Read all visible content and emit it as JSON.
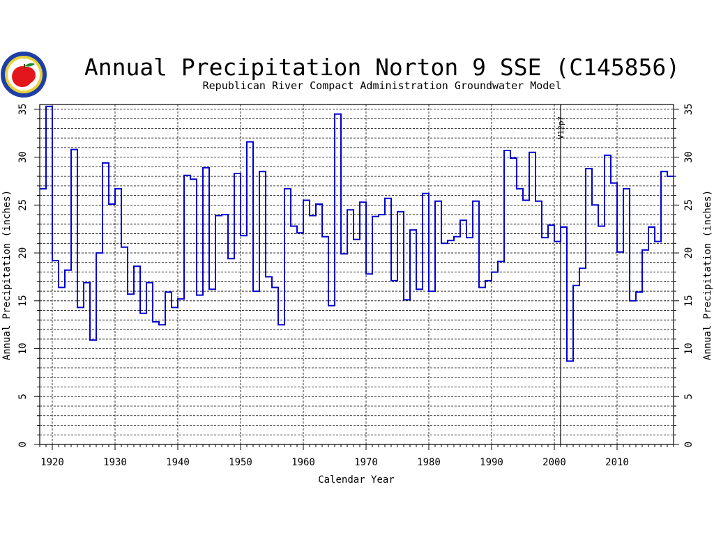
{
  "chart_data": {
    "type": "line",
    "style": "step",
    "title": "Annual Precipitation Norton 9 SSE (C145856)",
    "subtitle": "Republican River Compact Administration Groundwater Model",
    "xlabel": "Calendar Year",
    "ylabel_left": "Annual Precipitation (inches)",
    "ylabel_right": "Annual Precipitation (inches)",
    "xlim": [
      1918,
      2019
    ],
    "ylim": [
      0,
      35.5
    ],
    "x_ticks": [
      1920,
      1930,
      1940,
      1950,
      1960,
      1970,
      1980,
      1990,
      2000,
      2010
    ],
    "y_ticks": [
      0,
      5,
      10,
      15,
      20,
      25,
      30,
      35
    ],
    "minor_grid_step": 1,
    "grid": true,
    "line_color": "#0000cc",
    "annotation": {
      "x": 2001,
      "label": "V12p7"
    },
    "logo": "kansas-apple-seal",
    "x": [
      1918,
      1919,
      1920,
      1921,
      1922,
      1923,
      1924,
      1925,
      1926,
      1927,
      1928,
      1929,
      1930,
      1931,
      1932,
      1933,
      1934,
      1935,
      1936,
      1937,
      1938,
      1939,
      1940,
      1941,
      1942,
      1943,
      1944,
      1945,
      1946,
      1947,
      1948,
      1949,
      1950,
      1951,
      1952,
      1953,
      1954,
      1955,
      1956,
      1957,
      1958,
      1959,
      1960,
      1961,
      1962,
      1963,
      1964,
      1965,
      1966,
      1967,
      1968,
      1969,
      1970,
      1971,
      1972,
      1973,
      1974,
      1975,
      1976,
      1977,
      1978,
      1979,
      1980,
      1981,
      1982,
      1983,
      1984,
      1985,
      1986,
      1987,
      1988,
      1989,
      1990,
      1991,
      1992,
      1993,
      1994,
      1995,
      1996,
      1997,
      1998,
      1999,
      2000,
      2001,
      2002,
      2003,
      2004,
      2005,
      2006,
      2007,
      2008,
      2009,
      2010,
      2011,
      2012,
      2013,
      2014,
      2015,
      2016,
      2017,
      2018
    ],
    "values": [
      26.7,
      35.3,
      19.2,
      16.4,
      18.2,
      30.8,
      14.3,
      16.9,
      10.9,
      20.0,
      29.4,
      25.1,
      26.7,
      20.6,
      15.7,
      18.6,
      13.7,
      16.9,
      12.8,
      12.5,
      15.9,
      14.3,
      15.2,
      28.1,
      27.7,
      15.6,
      28.9,
      16.2,
      23.9,
      24.0,
      19.4,
      28.3,
      21.8,
      31.6,
      16.0,
      28.5,
      17.5,
      16.4,
      12.5,
      26.7,
      22.8,
      22.1,
      25.5,
      23.9,
      25.1,
      21.7,
      14.5,
      34.5,
      19.9,
      24.5,
      21.4,
      25.3,
      17.8,
      23.8,
      24.0,
      25.7,
      17.1,
      24.3,
      15.1,
      22.4,
      16.2,
      26.2,
      16.0,
      25.4,
      21.0,
      21.3,
      21.7,
      23.4,
      21.6,
      25.4,
      16.4,
      17.1,
      18.0,
      19.1,
      30.7,
      29.9,
      26.7,
      25.5,
      30.5,
      25.4,
      21.6,
      22.9,
      21.2,
      22.7,
      8.7,
      16.6,
      18.4,
      28.8,
      25.0,
      22.8,
      30.2,
      27.3,
      20.1,
      26.7,
      15.0,
      15.9,
      20.3,
      22.7,
      21.2,
      28.5,
      28.0
    ]
  }
}
